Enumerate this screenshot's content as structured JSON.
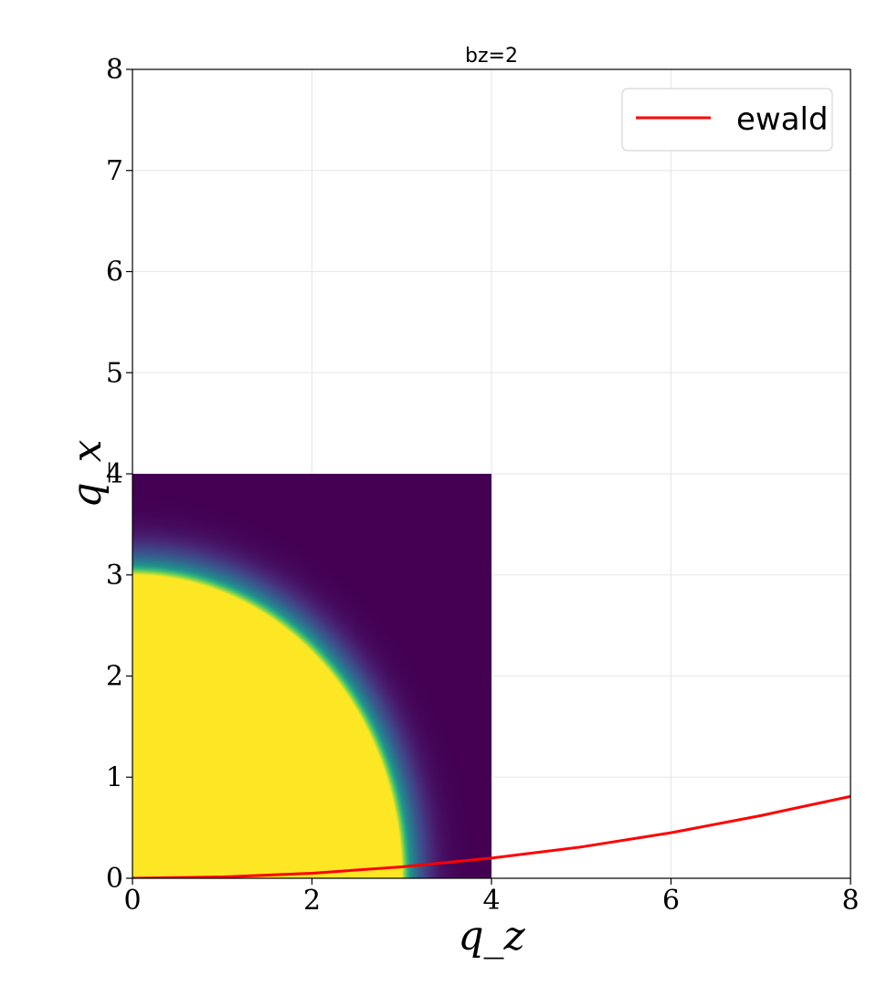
{
  "chart_data": {
    "type": "heatmap",
    "title": "bz=2",
    "xlabel": "q_z",
    "ylabel": "q_x",
    "xlim": [
      0,
      8
    ],
    "ylim": [
      0,
      8
    ],
    "xticks": [
      0,
      2,
      4,
      6,
      8
    ],
    "yticks": [
      0,
      1,
      2,
      3,
      4,
      5,
      6,
      7,
      8
    ],
    "grid": true,
    "heatmap": {
      "extent": {
        "x": [
          0,
          4
        ],
        "y": [
          0,
          4
        ]
      },
      "colormap": "viridis",
      "saturated_radius": 3.0,
      "falloff_to_radius": 4.0,
      "high_color": "#fde725",
      "low_color": "#440154"
    },
    "series": [
      {
        "name": "ewald",
        "color": "#ff0000",
        "x": [
          0,
          1,
          2,
          3,
          4,
          5,
          6,
          7,
          8
        ],
        "y": [
          0,
          0.013,
          0.05,
          0.113,
          0.2,
          0.31,
          0.45,
          0.62,
          0.81
        ]
      }
    ],
    "legend": {
      "placement": "top-right",
      "entries": [
        "ewald"
      ]
    }
  }
}
